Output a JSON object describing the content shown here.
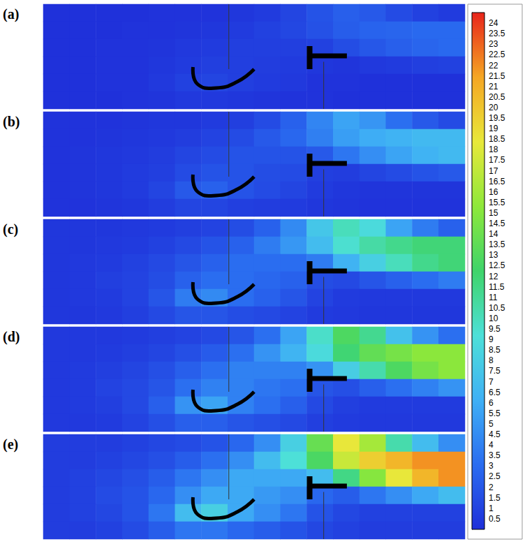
{
  "chart_data": {
    "type": "heatmap",
    "tick_labels": false,
    "panels": [
      {
        "label": "(a)",
        "cells": [
          [
            0.1,
            0.1,
            0.1,
            0.1,
            0.2,
            0.2,
            0.2,
            0.4,
            0.6,
            1.1,
            1.8,
            2.4,
            2.1,
            1.4,
            0.9,
            0.6
          ],
          [
            0.1,
            0.1,
            0.1,
            0.2,
            0.2,
            0.3,
            0.4,
            0.6,
            0.9,
            1.2,
            1.7,
            2.3,
            2.6,
            2.7,
            2.9,
            2.9
          ],
          [
            0.1,
            0.1,
            0.2,
            0.2,
            0.3,
            0.5,
            0.6,
            0.8,
            0.8,
            0.8,
            0.9,
            1.5,
            2.0,
            2.4,
            2.7,
            2.9
          ],
          [
            0.1,
            0.1,
            0.2,
            0.2,
            0.4,
            0.6,
            0.8,
            0.8,
            0.7,
            0.6,
            0.4,
            0.3,
            0.5,
            0.6,
            0.8,
            0.9
          ],
          [
            0.1,
            0.1,
            0.2,
            0.2,
            0.5,
            0.9,
            1.1,
            0.8,
            0.6,
            0.5,
            0.2,
            0.2,
            0.1,
            0.1,
            0.1,
            0.1
          ],
          [
            0.1,
            0.1,
            0.1,
            0.2,
            0.3,
            0.5,
            0.5,
            0.4,
            0.3,
            0.2,
            0.2,
            0.1,
            0.1,
            0.1,
            0.1,
            0.1
          ]
        ]
      },
      {
        "label": "(b)",
        "cells": [
          [
            0.2,
            0.2,
            0.2,
            0.3,
            0.4,
            0.4,
            0.6,
            0.8,
            1.4,
            2.5,
            4.2,
            5.6,
            4.9,
            3.2,
            2.1,
            1.4
          ],
          [
            0.2,
            0.2,
            0.3,
            0.4,
            0.5,
            0.7,
            1.0,
            1.4,
            2.1,
            2.8,
            3.9,
            5.3,
            6.0,
            6.3,
            6.7,
            6.7
          ],
          [
            0.2,
            0.3,
            0.4,
            0.5,
            0.7,
            1.1,
            1.4,
            1.8,
            1.8,
            1.8,
            2.1,
            3.5,
            4.6,
            5.6,
            6.3,
            6.7
          ],
          [
            0.2,
            0.3,
            0.4,
            0.6,
            0.8,
            1.4,
            1.8,
            1.8,
            1.5,
            1.4,
            0.8,
            0.7,
            1.1,
            1.4,
            1.8,
            2.1
          ],
          [
            0.2,
            0.3,
            0.4,
            0.6,
            1.1,
            2.1,
            2.5,
            1.8,
            1.4,
            1.1,
            0.6,
            0.4,
            0.3,
            0.3,
            0.3,
            0.3
          ],
          [
            0.2,
            0.2,
            0.3,
            0.4,
            0.7,
            1.1,
            1.1,
            0.8,
            0.7,
            0.6,
            0.4,
            0.3,
            0.2,
            0.2,
            0.2,
            0.2
          ]
        ]
      },
      {
        "label": "(c)",
        "cells": [
          [
            0.4,
            0.4,
            0.4,
            0.5,
            0.6,
            0.8,
            1.0,
            1.5,
            2.5,
            4.4,
            7.5,
            10.0,
            8.8,
            5.6,
            3.8,
            2.5
          ],
          [
            0.4,
            0.4,
            0.5,
            0.6,
            0.9,
            1.3,
            1.8,
            2.5,
            3.8,
            5.0,
            6.9,
            9.4,
            10.6,
            11.3,
            11.9,
            11.9
          ],
          [
            0.4,
            0.5,
            0.6,
            0.9,
            1.3,
            1.9,
            2.5,
            3.1,
            3.1,
            3.1,
            3.8,
            6.3,
            8.1,
            10.0,
            11.3,
            11.9
          ],
          [
            0.4,
            0.5,
            0.8,
            1.0,
            1.5,
            2.5,
            3.1,
            3.1,
            2.8,
            2.5,
            1.5,
            1.3,
            1.9,
            2.5,
            3.1,
            3.8
          ],
          [
            0.4,
            0.5,
            0.6,
            1.0,
            1.9,
            3.8,
            4.4,
            3.1,
            2.5,
            1.9,
            1.0,
            0.6,
            0.5,
            0.5,
            0.5,
            0.5
          ],
          [
            0.4,
            0.4,
            0.5,
            0.8,
            1.3,
            1.9,
            1.9,
            1.5,
            1.3,
            1.0,
            0.6,
            0.5,
            0.4,
            0.4,
            0.4,
            0.4
          ]
        ]
      },
      {
        "label": "(d)",
        "cells": [
          [
            0.5,
            0.5,
            0.5,
            0.6,
            0.8,
            1.0,
            1.3,
            1.9,
            3.2,
            5.6,
            9.6,
            12.8,
            11.2,
            7.2,
            4.8,
            3.2
          ],
          [
            0.5,
            0.5,
            0.6,
            0.8,
            1.1,
            1.6,
            2.2,
            3.2,
            4.8,
            6.4,
            8.8,
            12.0,
            13.6,
            14.4,
            15.2,
            15.2
          ],
          [
            0.5,
            0.6,
            0.8,
            1.1,
            1.6,
            2.4,
            3.2,
            4.0,
            4.0,
            4.0,
            4.8,
            8.0,
            10.4,
            12.8,
            14.4,
            15.2
          ],
          [
            0.5,
            0.6,
            1.0,
            1.3,
            1.9,
            3.2,
            4.0,
            4.0,
            3.5,
            3.2,
            1.9,
            1.6,
            2.4,
            3.2,
            4.0,
            4.8
          ],
          [
            0.5,
            0.6,
            0.8,
            1.3,
            2.4,
            4.8,
            5.6,
            4.0,
            3.2,
            2.4,
            1.3,
            0.8,
            0.6,
            0.6,
            0.6,
            0.6
          ],
          [
            0.5,
            0.5,
            0.6,
            1.0,
            1.6,
            2.4,
            2.4,
            1.9,
            1.6,
            1.3,
            0.8,
            0.6,
            0.5,
            0.5,
            0.5,
            0.5
          ]
        ]
      },
      {
        "label": "(e)",
        "cells": [
          [
            0.7,
            0.7,
            0.7,
            0.9,
            1.2,
            1.4,
            1.8,
            2.8,
            4.6,
            8.1,
            13.8,
            18.4,
            16.1,
            10.4,
            6.9,
            4.6
          ],
          [
            0.7,
            0.7,
            0.9,
            1.2,
            1.6,
            2.3,
            3.2,
            4.6,
            6.9,
            9.2,
            12.7,
            17.3,
            19.6,
            20.7,
            21.9,
            21.9
          ],
          [
            0.7,
            0.9,
            1.2,
            1.6,
            2.3,
            3.5,
            4.6,
            5.8,
            5.8,
            5.8,
            6.9,
            11.5,
            15.0,
            18.4,
            20.7,
            21.9
          ],
          [
            0.7,
            0.9,
            1.4,
            1.8,
            2.8,
            4.6,
            5.8,
            5.8,
            5.1,
            4.6,
            2.8,
            2.3,
            3.5,
            4.6,
            5.8,
            6.9
          ],
          [
            0.7,
            0.9,
            1.2,
            1.8,
            3.5,
            6.9,
            8.1,
            5.8,
            4.6,
            3.5,
            1.8,
            1.2,
            0.9,
            0.9,
            0.9,
            0.9
          ],
          [
            0.7,
            0.7,
            0.9,
            1.4,
            2.3,
            3.5,
            3.5,
            2.8,
            2.3,
            1.8,
            1.2,
            0.9,
            0.7,
            0.7,
            0.7,
            0.7
          ]
        ]
      }
    ],
    "colorbar": {
      "range": [
        0,
        24.5
      ],
      "ticks": [
        0.5,
        1,
        1.5,
        2,
        2.5,
        3,
        3.5,
        4,
        4.5,
        5,
        5.5,
        6,
        6.5,
        7,
        7.5,
        8,
        8.5,
        9,
        9.5,
        10,
        10.5,
        11,
        11.5,
        12,
        12.5,
        13,
        13.5,
        14,
        14.5,
        15,
        15.5,
        16,
        16.5,
        17,
        17.5,
        18,
        18.5,
        19,
        19.5,
        20,
        20.5,
        21,
        21.5,
        22,
        22.5,
        23,
        23.5,
        24
      ],
      "colors": [
        "#1f2fd9",
        "#2a6cf0",
        "#3fb0f5",
        "#4de0d8",
        "#3fd46a",
        "#8ee83a",
        "#e8e83a",
        "#f5a623",
        "#e8241a"
      ]
    }
  }
}
